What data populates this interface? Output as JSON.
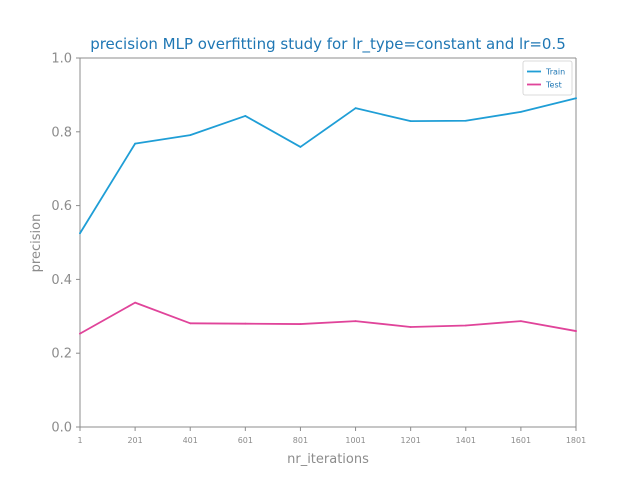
{
  "chart_data": {
    "type": "line",
    "title": "precision MLP overfitting study for lr_type=constant and lr=0.5",
    "xlabel": "nr_iterations",
    "ylabel": "precision",
    "x": [
      1,
      201,
      401,
      601,
      801,
      1001,
      1201,
      1401,
      1601,
      1801
    ],
    "x_tick_labels": [
      "1",
      "201",
      "401",
      "601",
      "801",
      "1001",
      "1201",
      "1401",
      "1601",
      "1801"
    ],
    "ylim": [
      0.0,
      1.0
    ],
    "y_tick_labels": [
      "0.0",
      "0.2",
      "0.4",
      "0.6",
      "0.8",
      "1.0"
    ],
    "grid": false,
    "legend_position": "top-right",
    "series": [
      {
        "name": "Train",
        "color": "#1f9ed6",
        "values": [
          0.525,
          0.768,
          0.791,
          0.843,
          0.759,
          0.864,
          0.829,
          0.83,
          0.854,
          0.891
        ]
      },
      {
        "name": "Test",
        "color": "#e0449a",
        "values": [
          0.253,
          0.337,
          0.281,
          0.28,
          0.279,
          0.287,
          0.271,
          0.275,
          0.287,
          0.26
        ]
      }
    ]
  }
}
